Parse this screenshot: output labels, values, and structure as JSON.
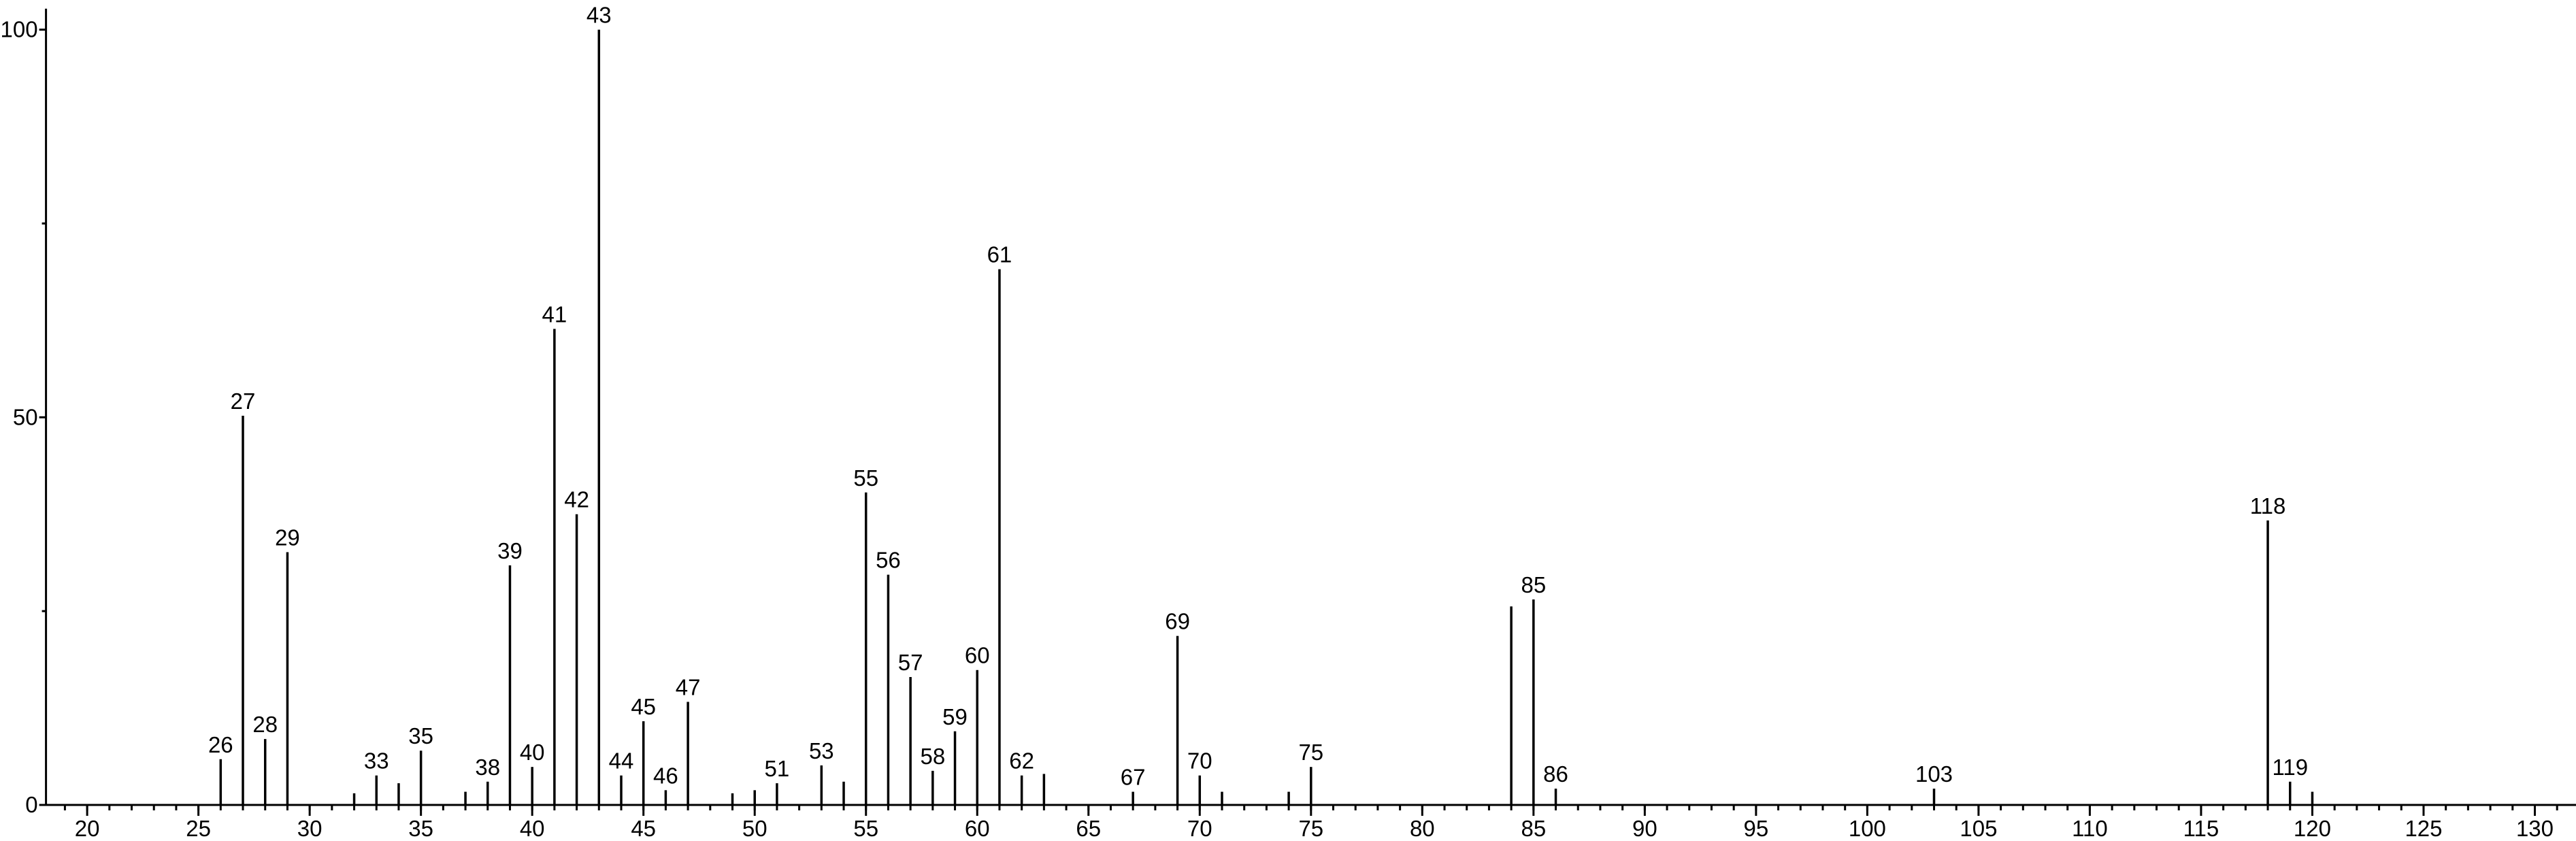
{
  "chart_data": {
    "type": "stem",
    "x": [
      26,
      27,
      28,
      29,
      32,
      33,
      34,
      35,
      37,
      38,
      39,
      40,
      41,
      42,
      43,
      44,
      45,
      46,
      47,
      49,
      50,
      51,
      53,
      54,
      55,
      56,
      57,
      58,
      59,
      60,
      61,
      62,
      63,
      67,
      69,
      70,
      71,
      74,
      75,
      84,
      85,
      86,
      103,
      118,
      119,
      120
    ],
    "values": [
      5.9,
      50.2,
      8.5,
      32.6,
      1.5,
      3.8,
      2.8,
      7.0,
      1.7,
      3.0,
      30.9,
      4.9,
      61.4,
      37.5,
      100,
      3.8,
      10.8,
      1.9,
      13.3,
      1.5,
      1.9,
      2.8,
      5.1,
      3.0,
      40.3,
      29.7,
      16.5,
      4.4,
      9.5,
      17.4,
      69.1,
      3.8,
      4.0,
      1.7,
      21.8,
      3.8,
      1.7,
      1.7,
      4.9,
      25.6,
      26.5,
      2.1,
      2.1,
      36.7,
      3.0,
      1.7
    ],
    "labeled": [
      true,
      true,
      true,
      true,
      false,
      true,
      false,
      true,
      false,
      true,
      true,
      true,
      true,
      true,
      true,
      true,
      true,
      true,
      true,
      false,
      false,
      true,
      true,
      false,
      true,
      true,
      true,
      true,
      true,
      true,
      true,
      true,
      false,
      true,
      true,
      true,
      false,
      false,
      true,
      false,
      true,
      true,
      true,
      true,
      true,
      false
    ],
    "color": "#000000",
    "xlim": [
      18.15,
      131.85
    ],
    "xticks": [
      20,
      25,
      30,
      35,
      40,
      45,
      50,
      55,
      60,
      65,
      70,
      75,
      80,
      85,
      90,
      95,
      100,
      105,
      110,
      115,
      120,
      125,
      130
    ],
    "xminorstep": 1,
    "ylim": [
      0,
      102.7
    ],
    "yticks": [
      0,
      50,
      100
    ],
    "yminorticks": [
      25,
      75
    ]
  }
}
